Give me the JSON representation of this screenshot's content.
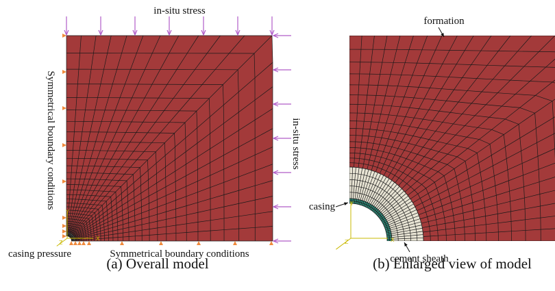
{
  "panel_a": {
    "top_label": "in-situ stress",
    "left_label": "Symmetrical boundary conditions",
    "right_label": "in-situ stress",
    "casing_label": "casing pressure",
    "bottom_label": "Symmetrical boundary conditions",
    "axis_labels": [
      "Y",
      "X",
      "Z"
    ],
    "caption": "(a) Overall model"
  },
  "panel_b": {
    "formation_label": "formation",
    "casing_label": "casing",
    "cement_label": "cement sheath",
    "axis_labels": [
      "Y",
      "X",
      "Z"
    ],
    "caption": "(b) Enlarged view of model"
  }
}
